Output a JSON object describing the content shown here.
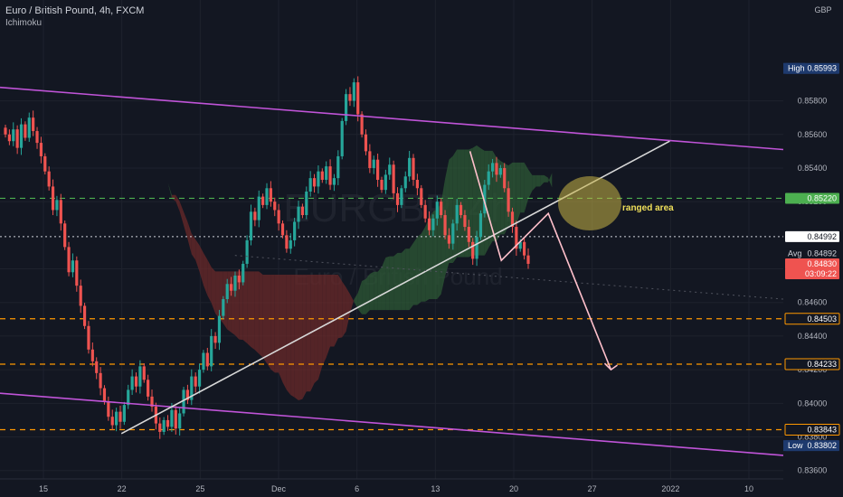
{
  "header": {
    "symbol_line": "Euro / British Pound, 4h, FXCM",
    "indicator": "Ichimoku",
    "currency": "GBP"
  },
  "watermark": {
    "symbol": "EURGBP, 4h",
    "name": "Euro / British Pound"
  },
  "colors": {
    "background": "#131722",
    "up": "#26a69a",
    "down": "#ef5350",
    "cloud_green": "#2e5a36",
    "cloud_red": "#6b2a2a",
    "channel": "#c054d8",
    "trendline": "#d8d8d8",
    "projection": "#ffc0cb",
    "green_level": "#4caf50",
    "orange_level": "#ff9800",
    "range_circle": "#c8b446"
  },
  "annotation": {
    "text": "ranged area"
  },
  "price_tags": [
    {
      "label": "High",
      "value": "0.85993",
      "style": "high"
    },
    {
      "label": "",
      "value": "0.85220",
      "style": "green"
    },
    {
      "label": "",
      "value": "0.84992",
      "style": "white"
    },
    {
      "label": "Avg",
      "value": "0.84892",
      "style": "avg"
    },
    {
      "label": "",
      "value": "0.84830",
      "style": "red"
    },
    {
      "label": "",
      "value": "03:09:22",
      "style": "red-sub"
    },
    {
      "label": "",
      "value": "0.84503",
      "style": "orange"
    },
    {
      "label": "",
      "value": "0.84233",
      "style": "orange"
    },
    {
      "label": "",
      "value": "0.83843",
      "style": "orange"
    },
    {
      "label": "Low",
      "value": "0.83802",
      "style": "low"
    }
  ],
  "chart_data": {
    "type": "candlestick",
    "timeframe": "4h",
    "y_ticks": [
      "0.85800",
      "0.85600",
      "0.85400",
      "0.85200",
      "0.84800",
      "0.84600",
      "0.84400",
      "0.84200",
      "0.84000",
      "0.83800",
      "0.83600"
    ],
    "x_ticks": [
      "15",
      "22",
      "25",
      "Dec",
      "6",
      "13",
      "20",
      "27",
      "2022",
      "10"
    ],
    "ylim": [
      0.8355,
      0.864
    ],
    "levels": {
      "green_dashed": 0.8522,
      "white_dotted": 0.84992,
      "orange_dashed": [
        0.84503,
        0.84233,
        0.83843
      ]
    },
    "candles_close_path": [
      0.856,
      0.8556,
      0.8563,
      0.8552,
      0.8566,
      0.8558,
      0.857,
      0.8562,
      0.8555,
      0.8547,
      0.8538,
      0.8529,
      0.8515,
      0.8521,
      0.8507,
      0.8493,
      0.8478,
      0.8485,
      0.847,
      0.8458,
      0.8446,
      0.8432,
      0.8425,
      0.8418,
      0.8409,
      0.8401,
      0.8392,
      0.8387,
      0.8395,
      0.8389,
      0.8399,
      0.8408,
      0.8416,
      0.841,
      0.8422,
      0.8414,
      0.8404,
      0.8398,
      0.8388,
      0.8383,
      0.839,
      0.8386,
      0.8396,
      0.8385,
      0.8394,
      0.8408,
      0.8402,
      0.8416,
      0.841,
      0.842,
      0.843,
      0.8422,
      0.844,
      0.8436,
      0.8452,
      0.8462,
      0.8471,
      0.8467,
      0.8476,
      0.8472,
      0.8483,
      0.8497,
      0.8514,
      0.8509,
      0.8523,
      0.8518,
      0.8528,
      0.852,
      0.8515,
      0.8507,
      0.85,
      0.8492,
      0.8497,
      0.8508,
      0.8517,
      0.8512,
      0.8526,
      0.8534,
      0.8529,
      0.8538,
      0.8533,
      0.8541,
      0.853,
      0.8534,
      0.8547,
      0.8568,
      0.8584,
      0.858,
      0.8591,
      0.8572,
      0.856,
      0.855,
      0.854,
      0.8545,
      0.8533,
      0.8527,
      0.8536,
      0.8542,
      0.8525,
      0.8518,
      0.8528,
      0.8535,
      0.8546,
      0.8533,
      0.8528,
      0.8518,
      0.851,
      0.8503,
      0.851,
      0.852,
      0.8512,
      0.85,
      0.8495,
      0.8507,
      0.8518,
      0.8512,
      0.8505,
      0.8496,
      0.8486,
      0.8499,
      0.8513,
      0.853,
      0.8538,
      0.8543,
      0.8536,
      0.854,
      0.8528,
      0.8514,
      0.8505,
      0.8492,
      0.8496,
      0.8488,
      0.8483
    ],
    "channel_upper": [
      [
        0,
        0.8588
      ],
      [
        1,
        0.8551
      ]
    ],
    "channel_lower": [
      [
        0,
        0.8406
      ],
      [
        1,
        0.8369
      ]
    ],
    "trendline": [
      [
        0.155,
        0.8382
      ],
      [
        0.855,
        0.8556
      ]
    ],
    "projection_path": [
      [
        0.6,
        0.855
      ],
      [
        0.64,
        0.8485
      ],
      [
        0.7,
        0.8513
      ],
      [
        0.78,
        0.842
      ]
    ]
  }
}
